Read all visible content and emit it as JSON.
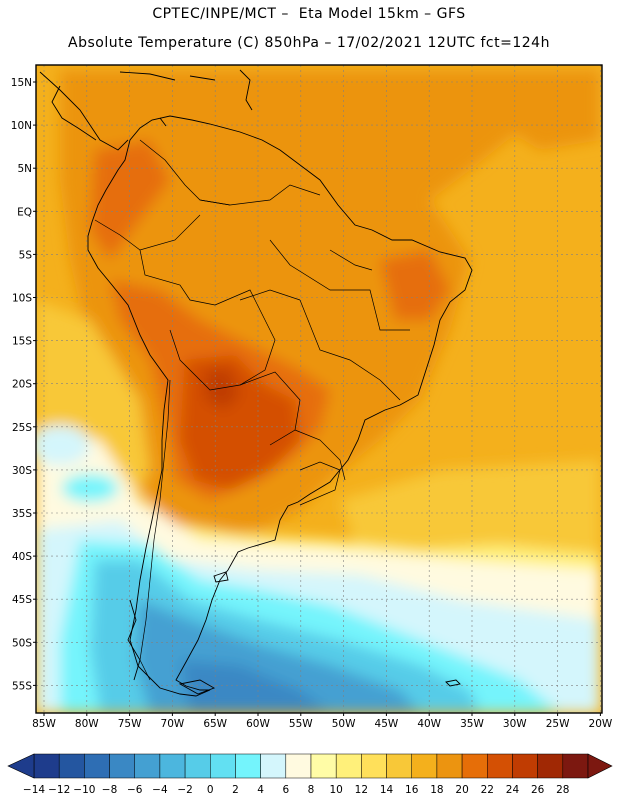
{
  "header": {
    "line1": "CPTEC/INPE/MCT –  Eta Model 15km – GFS",
    "line2": "Absolute Temperature (C) 850hPa – 17/02/2021 12UTC fct=124h"
  },
  "map": {
    "lat_labels": [
      "15N",
      "10N",
      "5N",
      "EQ",
      "5S",
      "10S",
      "15S",
      "20S",
      "25S",
      "30S",
      "35S",
      "40S",
      "45S",
      "50S",
      "55S"
    ],
    "lon_labels": [
      "85W",
      "80W",
      "75W",
      "70W",
      "65W",
      "60W",
      "55W",
      "50W",
      "45W",
      "40W",
      "35W",
      "30W",
      "25W",
      "20W"
    ]
  },
  "colorbar": {
    "ticks": [
      "-14",
      "-12",
      "-10",
      "-8",
      "-6",
      "-4",
      "-2",
      "0",
      "2",
      "4",
      "6",
      "8",
      "10",
      "12",
      "14",
      "16",
      "18",
      "20",
      "22",
      "24",
      "26",
      "28"
    ],
    "colors": [
      "#1e3c8c",
      "#2456a0",
      "#2e6eb4",
      "#3a88c4",
      "#44a0d2",
      "#4cb6de",
      "#56cce8",
      "#62e0f2",
      "#74f4fc",
      "#d4f6fc",
      "#fffae0",
      "#fffca6",
      "#fff07a",
      "#ffe05a",
      "#f8c838",
      "#f4b01c",
      "#ec9410",
      "#e66e08",
      "#d45004",
      "#c03c02",
      "#a02804",
      "#7c1810"
    ]
  },
  "field_colors": {
    "deep_blue": "#3a88c4",
    "blue": "#44a0d2",
    "light_blue": "#56cce8",
    "cyan": "#74f4fc",
    "pale_cyan": "#d4f6fc",
    "cream": "#fffae0",
    "pale_yellow": "#fff07a",
    "yellow": "#f8c838",
    "gold": "#f4b01c",
    "orange": "#ec9410",
    "dark_orange": "#e66e08",
    "red_orange": "#d45004",
    "brown_red": "#c03c02"
  }
}
